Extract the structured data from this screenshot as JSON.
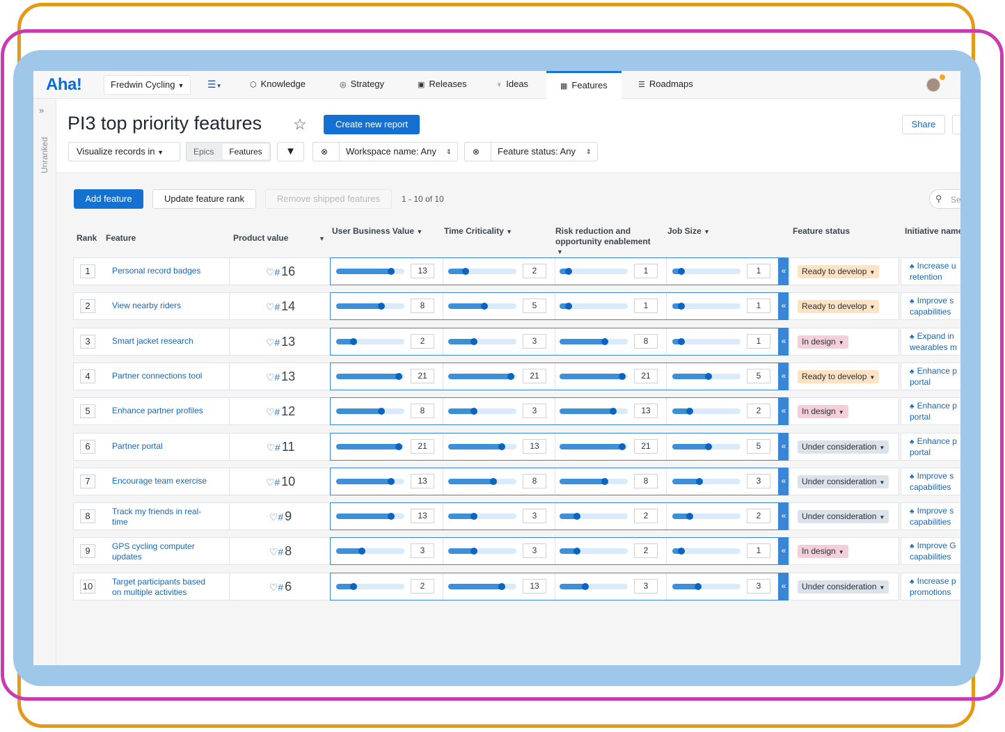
{
  "nav": {
    "logo": "Aha!",
    "workspace": "Fredwin Cycling",
    "items": [
      {
        "label": "Knowledge",
        "icon": "cube-icon"
      },
      {
        "label": "Strategy",
        "icon": "target-icon"
      },
      {
        "label": "Releases",
        "icon": "calendar-icon"
      },
      {
        "label": "Ideas",
        "icon": "lightbulb-icon"
      },
      {
        "label": "Features",
        "icon": "grid-icon",
        "active": true
      },
      {
        "label": "Roadmaps",
        "icon": "roadmap-icon"
      }
    ]
  },
  "rail": {
    "label": "Unranked"
  },
  "header": {
    "title": "PI3 top priority features",
    "create_report": "Create new report",
    "share": "Share",
    "visualize": "Visualize records in",
    "toggle": {
      "a": "Epics",
      "b": "Features"
    },
    "filter_workspace": "Workspace name: Any",
    "filter_status": "Feature status: Any"
  },
  "toolbar": {
    "add": "Add feature",
    "update_rank": "Update feature rank",
    "remove_shipped": "Remove shipped features",
    "count": "1 - 10 of 10",
    "search_placeholder": "Se"
  },
  "columns": {
    "rank": "Rank",
    "feature": "Feature",
    "product_value": "Product value",
    "ubv": "User Business Value",
    "tc": "Time Criticality",
    "rr1": "Risk reduction and",
    "rr2": "opportunity enablement",
    "js": "Job Size",
    "status": "Feature status",
    "initiative": "Initiative name"
  },
  "colors": {
    "accent": "#1571d1",
    "ready": "#fde2c4",
    "design": "#f2cfd9",
    "consideration": "#dbe2ea"
  },
  "rows": [
    {
      "rank": "1",
      "feature": [
        "Personal record badges"
      ],
      "pv": "16",
      "ubv": "13",
      "tc": "2",
      "rr": "1",
      "js": "1",
      "ubv_f": 0.84,
      "tc_f": 0.29,
      "rr_f": 0.16,
      "js_f": 0.16,
      "status": "Ready to develop",
      "stype": "ready",
      "init": [
        "Increase u",
        "retention"
      ]
    },
    {
      "rank": "2",
      "feature": [
        "View nearby riders"
      ],
      "pv": "14",
      "ubv": "8",
      "tc": "5",
      "rr": "1",
      "js": "1",
      "ubv_f": 0.69,
      "tc_f": 0.56,
      "rr_f": 0.16,
      "js_f": 0.16,
      "status": "Ready to develop",
      "stype": "ready",
      "init": [
        "Improve s",
        "capabilities"
      ]
    },
    {
      "rank": "3",
      "feature": [
        "Smart jacket research"
      ],
      "pv": "13",
      "ubv": "2",
      "tc": "3",
      "rr": "8",
      "js": "1",
      "ubv_f": 0.29,
      "tc_f": 0.41,
      "rr_f": 0.69,
      "js_f": 0.16,
      "status": "In design",
      "stype": "design",
      "init": [
        "Expand in",
        "wearables m"
      ]
    },
    {
      "rank": "4",
      "feature": [
        "Partner connections tool"
      ],
      "pv": "13",
      "ubv": "21",
      "tc": "21",
      "rr": "21",
      "js": "5",
      "ubv_f": 0.95,
      "tc_f": 0.95,
      "rr_f": 0.95,
      "js_f": 0.56,
      "status": "Ready to develop",
      "stype": "ready",
      "init": [
        "Enhance p",
        "portal"
      ]
    },
    {
      "rank": "5",
      "feature": [
        "Enhance partner profiles"
      ],
      "pv": "12",
      "ubv": "8",
      "tc": "3",
      "rr": "13",
      "js": "2",
      "ubv_f": 0.69,
      "tc_f": 0.41,
      "rr_f": 0.82,
      "js_f": 0.29,
      "status": "In design",
      "stype": "design",
      "init": [
        "Enhance p",
        "portal"
      ]
    },
    {
      "rank": "6",
      "feature": [
        "Partner portal"
      ],
      "pv": "11",
      "ubv": "21",
      "tc": "13",
      "rr": "21",
      "js": "5",
      "ubv_f": 0.95,
      "tc_f": 0.82,
      "rr_f": 0.95,
      "js_f": 0.56,
      "status": "Under consideration",
      "stype": "consideration",
      "init": [
        "Enhance p",
        "portal"
      ]
    },
    {
      "rank": "7",
      "feature": [
        "Encourage team exercise"
      ],
      "pv": "10",
      "ubv": "13",
      "tc": "8",
      "rr": "8",
      "js": "3",
      "ubv_f": 0.84,
      "tc_f": 0.69,
      "rr_f": 0.69,
      "js_f": 0.43,
      "status": "Under consideration",
      "stype": "consideration",
      "init": [
        "Improve s",
        "capabilities"
      ]
    },
    {
      "rank": "8",
      "feature": [
        "Track my friends in real-",
        "time"
      ],
      "pv": "9",
      "ubv": "13",
      "tc": "3",
      "rr": "2",
      "js": "2",
      "ubv_f": 0.84,
      "tc_f": 0.41,
      "rr_f": 0.29,
      "js_f": 0.29,
      "status": "Under consideration",
      "stype": "consideration",
      "init": [
        "Improve s",
        "capabilities"
      ]
    },
    {
      "rank": "9",
      "feature": [
        "GPS cycling computer",
        "updates"
      ],
      "pv": "8",
      "ubv": "3",
      "tc": "3",
      "rr": "2",
      "js": "1",
      "ubv_f": 0.41,
      "tc_f": 0.41,
      "rr_f": 0.29,
      "js_f": 0.16,
      "status": "In design",
      "stype": "design",
      "init": [
        "Improve G",
        "capabilities"
      ]
    },
    {
      "rank": "10",
      "feature": [
        "Target participants based",
        "on multiple activities"
      ],
      "pv": "6",
      "ubv": "2",
      "tc": "13",
      "rr": "3",
      "js": "3",
      "ubv_f": 0.29,
      "tc_f": 0.82,
      "rr_f": 0.41,
      "js_f": 0.41,
      "status": "Under consideration",
      "stype": "consideration",
      "init": [
        "Increase p",
        "promotions"
      ]
    }
  ]
}
